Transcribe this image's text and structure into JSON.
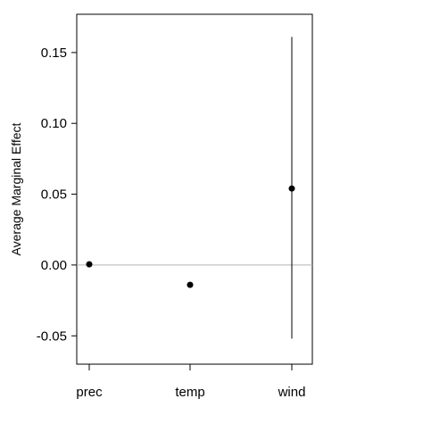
{
  "chart_data": {
    "type": "scatter",
    "title": "",
    "xlabel": "",
    "ylabel": "Average Marginal Effect",
    "categories": [
      "prec",
      "temp",
      "wind"
    ],
    "series": [
      {
        "values": [
          0.0005,
          -0.014,
          0.054
        ],
        "lower": [
          0.0005,
          -0.014,
          -0.052
        ],
        "upper": [
          0.0005,
          -0.014,
          0.161
        ]
      }
    ],
    "yticks": [
      -0.05,
      0.0,
      0.05,
      0.1,
      0.15
    ],
    "ytick_labels": [
      "-0.05",
      "0.00",
      "0.05",
      "0.10",
      "0.15"
    ],
    "ylim": [
      -0.07,
      0.177
    ],
    "reference_line": 0,
    "grid": false,
    "colors": {
      "points": "#000000",
      "reference_line": "#b3b3b3",
      "axis": "#000000"
    }
  }
}
